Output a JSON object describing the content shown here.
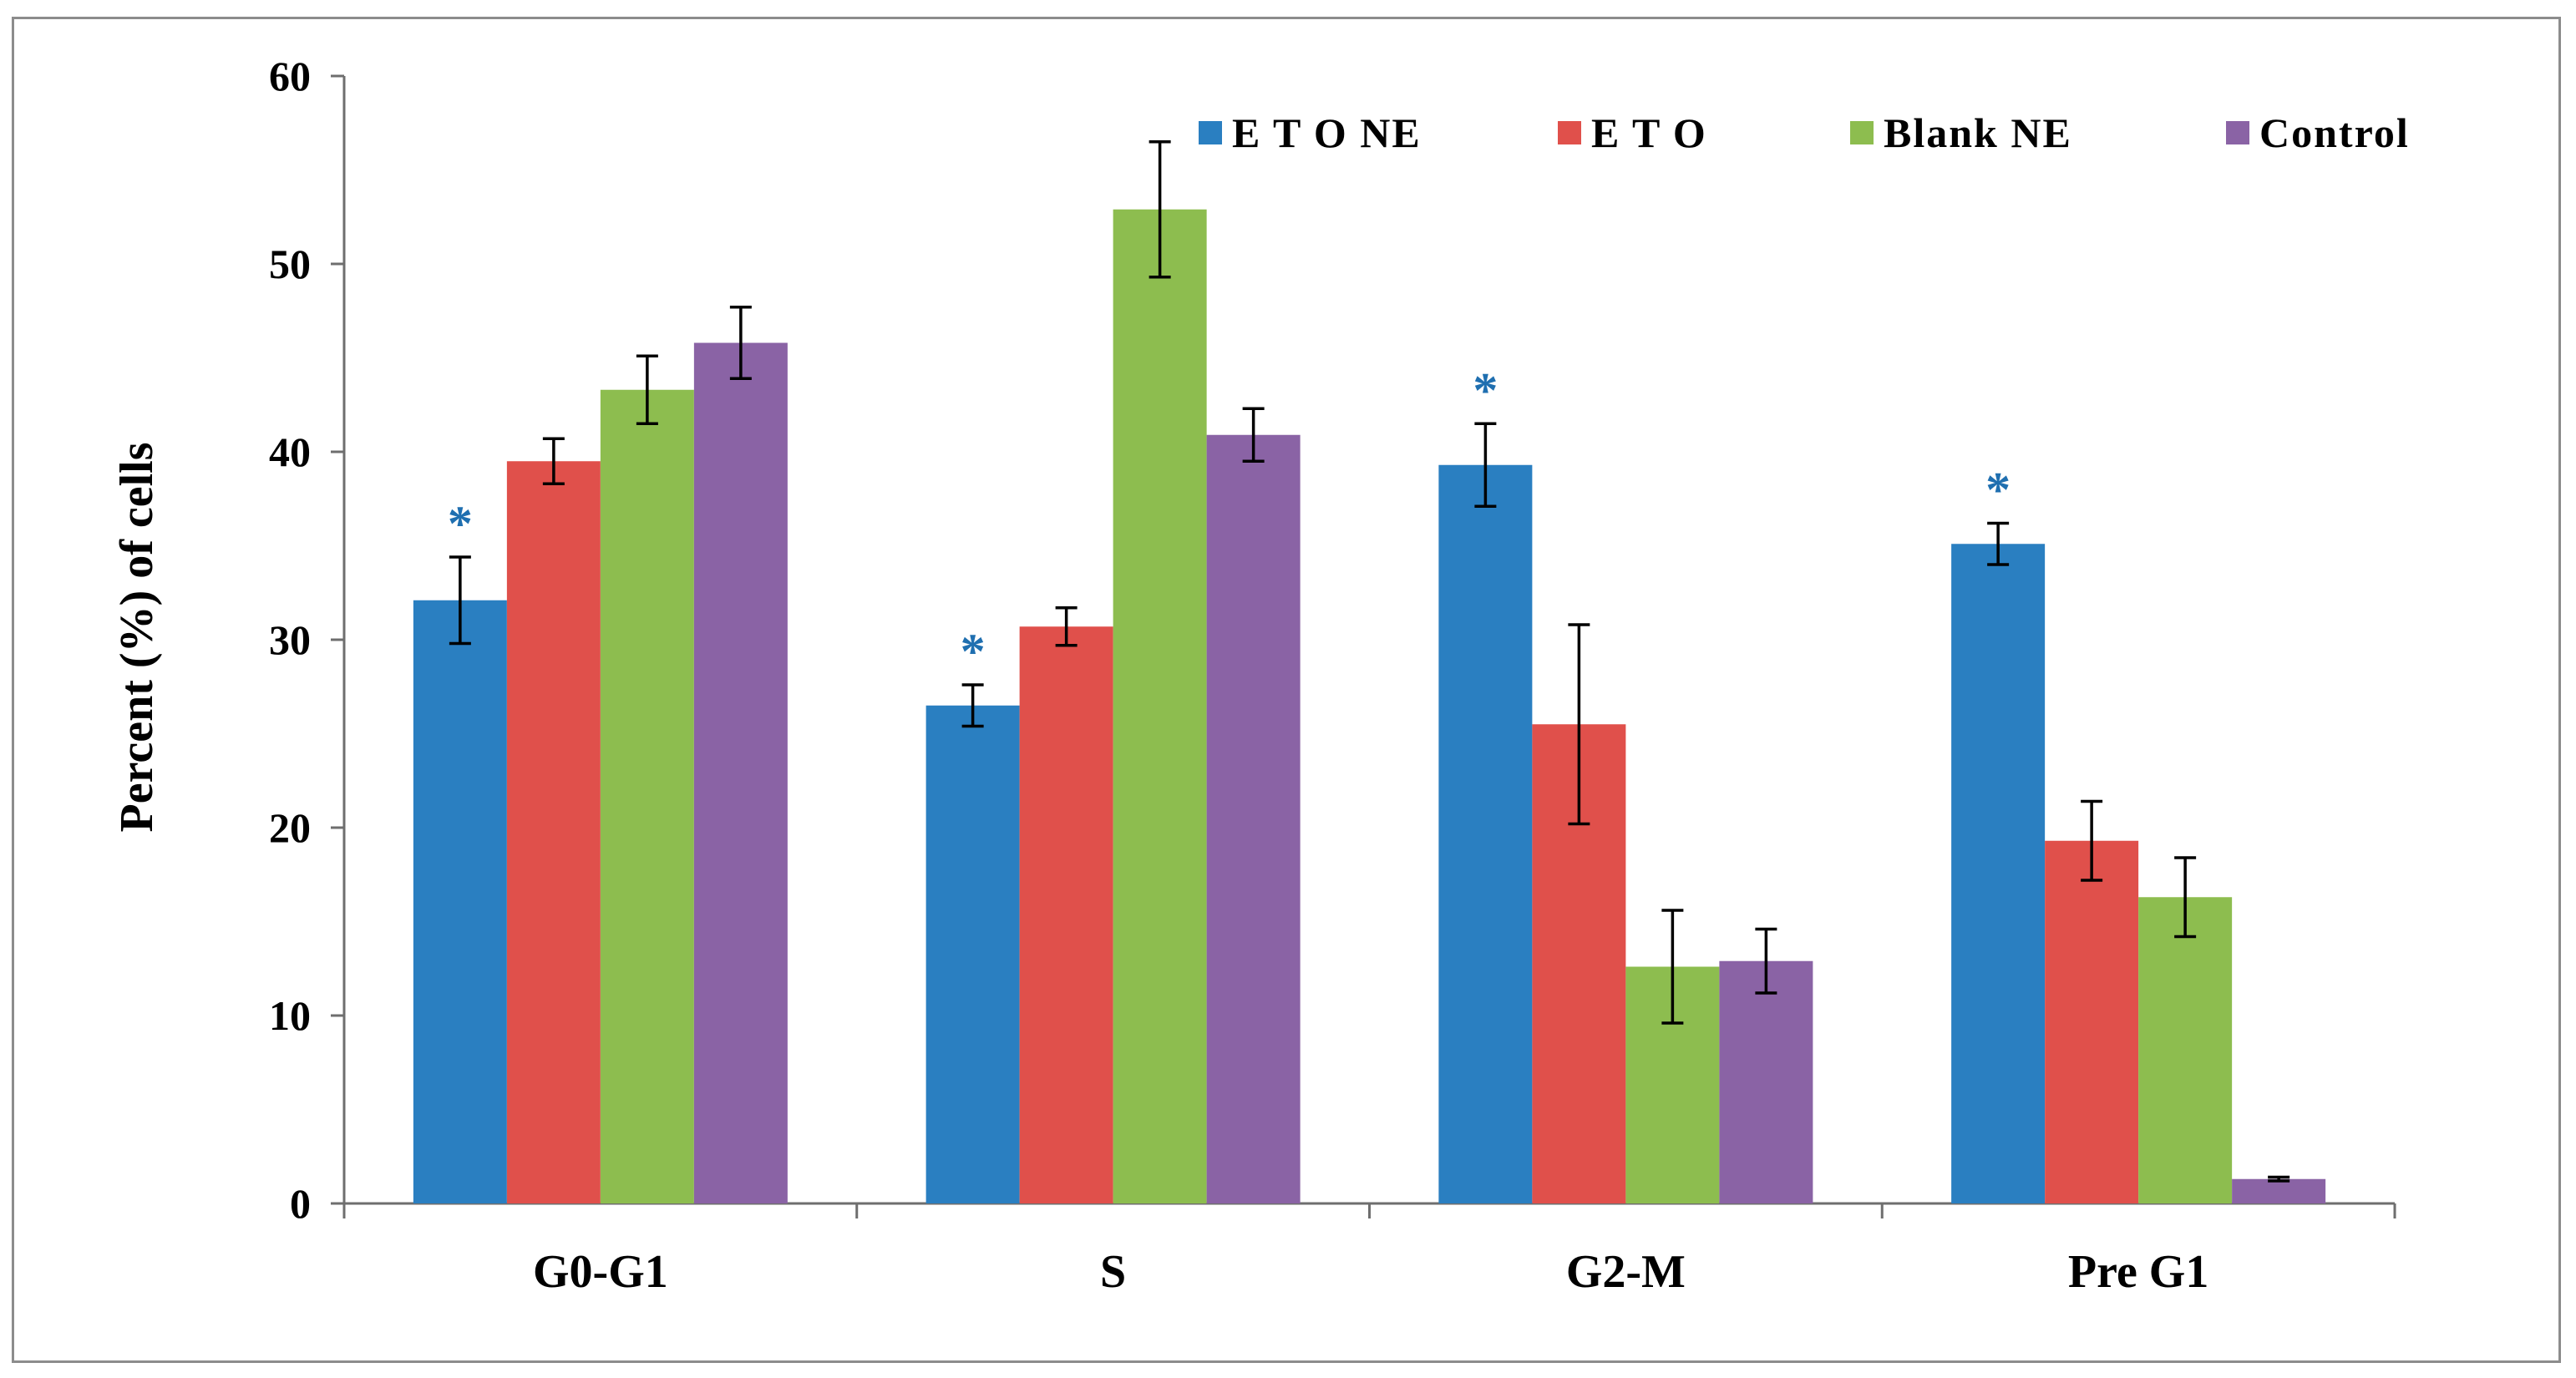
{
  "chart_data": {
    "type": "bar",
    "title": "",
    "xlabel": "",
    "ylabel": "Percent (%) of cells",
    "ylim": [
      0,
      60
    ],
    "yticks": [
      "0",
      "10",
      "20",
      "30",
      "40",
      "50",
      "60"
    ],
    "grid": false,
    "legend_position": "top-right",
    "categories": [
      "G0-G1",
      "S",
      "G2-M",
      "Pre G1"
    ],
    "series": [
      {
        "name": "E T O NE",
        "color": "#2a7fc1",
        "values": [
          32.1,
          26.5,
          39.3,
          35.1
        ],
        "errors": [
          2.3,
          1.1,
          2.2,
          1.1
        ]
      },
      {
        "name": "E T O",
        "color": "#e0504b",
        "values": [
          39.5,
          30.7,
          25.5,
          19.3
        ],
        "errors": [
          1.2,
          1.0,
          5.3,
          2.1
        ]
      },
      {
        "name": "Blank NE",
        "color": "#8dbd4f",
        "values": [
          43.3,
          52.9,
          12.6,
          16.3
        ],
        "errors": [
          1.8,
          3.6,
          3.0,
          2.1
        ]
      },
      {
        "name": "Control",
        "color": "#8a63a5",
        "values": [
          45.8,
          40.9,
          12.9,
          1.3
        ],
        "errors": [
          1.9,
          1.4,
          1.7,
          0.1
        ]
      }
    ],
    "annotations": [
      {
        "text": "*",
        "category": "G0-G1",
        "series": "E T O NE"
      },
      {
        "text": "*",
        "category": "S",
        "series": "E T O NE"
      },
      {
        "text": "*",
        "category": "G2-M",
        "series": "E T O NE"
      },
      {
        "text": "*",
        "category": "Pre G1",
        "series": "E T O NE"
      }
    ]
  }
}
